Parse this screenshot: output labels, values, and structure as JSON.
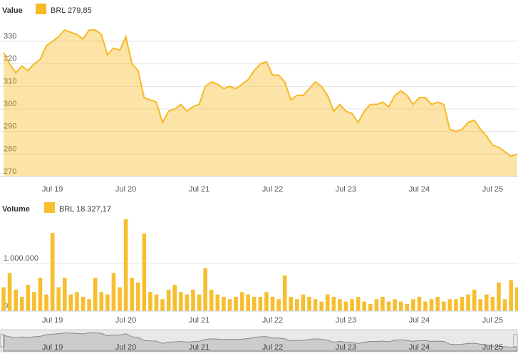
{
  "chart_data": [
    {
      "type": "area",
      "title": "Value",
      "categories": [
        null,
        null,
        null,
        null,
        null,
        null,
        null,
        null,
        "Jul 19",
        null,
        null,
        null,
        null,
        null,
        null,
        null,
        null,
        null,
        null,
        null,
        "Jul 20",
        null,
        null,
        null,
        null,
        null,
        null,
        null,
        null,
        null,
        null,
        null,
        "Jul 21",
        null,
        null,
        null,
        null,
        null,
        null,
        null,
        null,
        null,
        null,
        null,
        "Jul 22",
        null,
        null,
        null,
        null,
        null,
        null,
        null,
        null,
        null,
        null,
        null,
        "Jul 23",
        null,
        null,
        null,
        null,
        null,
        null,
        null,
        null,
        null,
        null,
        null,
        "Jul 24",
        null,
        null,
        null,
        null,
        null,
        null,
        null,
        null,
        null,
        null,
        null,
        "Jul 25",
        null,
        null,
        null,
        null
      ],
      "series": [
        {
          "name": "BRL 279,85",
          "color": "#f7b924",
          "values": [
            325,
            320,
            316,
            319,
            317,
            320,
            322,
            328,
            330,
            332,
            335,
            334,
            333,
            331,
            335,
            335,
            333,
            324,
            327,
            326,
            332,
            320,
            317,
            305,
            304,
            303,
            294,
            299,
            300,
            302,
            299,
            301,
            302,
            310,
            312,
            311,
            309,
            310,
            309,
            311,
            313,
            317,
            320,
            321,
            315,
            315,
            312,
            304,
            306,
            306,
            309,
            312,
            310,
            306,
            299,
            302,
            299,
            298,
            294,
            299,
            302,
            302,
            303,
            301,
            306,
            308,
            306,
            302,
            305,
            305,
            302,
            303,
            302,
            291,
            290,
            291,
            294,
            295,
            291,
            288,
            284,
            283,
            281,
            279,
            280
          ]
        }
      ],
      "ylim": [
        270,
        342
      ],
      "yticks": [
        270,
        280,
        290,
        300,
        310,
        320,
        330
      ],
      "grid": true
    },
    {
      "type": "bar",
      "title": "Volume",
      "categories": [
        null,
        null,
        null,
        null,
        null,
        null,
        null,
        null,
        "Jul 19",
        null,
        null,
        null,
        null,
        null,
        null,
        null,
        null,
        null,
        null,
        null,
        "Jul 20",
        null,
        null,
        null,
        null,
        null,
        null,
        null,
        null,
        null,
        null,
        null,
        "Jul 21",
        null,
        null,
        null,
        null,
        null,
        null,
        null,
        null,
        null,
        null,
        null,
        "Jul 22",
        null,
        null,
        null,
        null,
        null,
        null,
        null,
        null,
        null,
        null,
        null,
        "Jul 23",
        null,
        null,
        null,
        null,
        null,
        null,
        null,
        null,
        null,
        null,
        null,
        "Jul 24",
        null,
        null,
        null,
        null,
        null,
        null,
        null,
        null,
        null,
        null,
        null,
        "Jul 25",
        null,
        null,
        null,
        null
      ],
      "series": [
        {
          "name": "BRL 18.327,17",
          "color": "#f7be2f",
          "values": [
            500000,
            800000,
            450000,
            300000,
            550000,
            400000,
            700000,
            350000,
            1640000,
            500000,
            700000,
            350000,
            400000,
            300000,
            250000,
            700000,
            400000,
            350000,
            800000,
            500000,
            1930000,
            700000,
            600000,
            1630000,
            400000,
            350000,
            250000,
            450000,
            550000,
            400000,
            350000,
            450000,
            350000,
            900000,
            450000,
            350000,
            300000,
            250000,
            300000,
            400000,
            350000,
            300000,
            300000,
            400000,
            300000,
            250000,
            750000,
            300000,
            250000,
            350000,
            300000,
            250000,
            200000,
            350000,
            300000,
            250000,
            200000,
            250000,
            300000,
            200000,
            150000,
            250000,
            300000,
            200000,
            250000,
            200000,
            150000,
            250000,
            300000,
            200000,
            250000,
            300000,
            200000,
            250000,
            250000,
            300000,
            350000,
            450000,
            250000,
            350000,
            300000,
            600000,
            250000,
            650000,
            500000
          ]
        }
      ],
      "ylim": [
        0,
        2000000
      ],
      "yticks": [
        0,
        {
          "value": 1000000,
          "label": "1.000.000"
        }
      ],
      "grid": true
    }
  ]
}
